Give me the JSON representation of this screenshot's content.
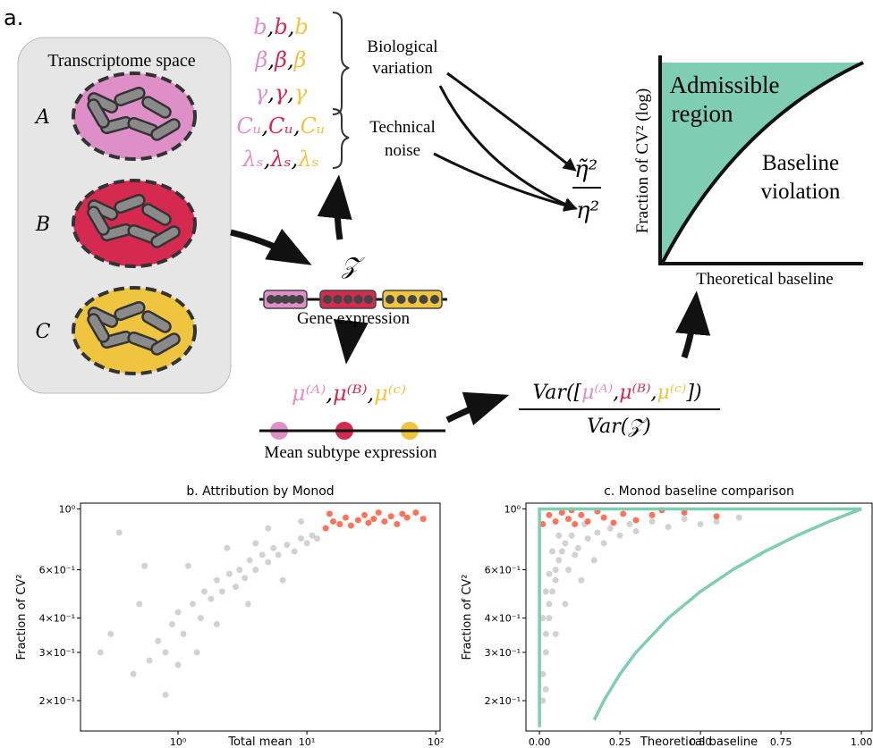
{
  "panel_label": "a.",
  "diagram": {
    "transcriptome_title": "Transcriptome space",
    "subtypes": [
      "A",
      "B",
      "C"
    ],
    "subtype_colors": [
      "#df8fc8",
      "#d5294f",
      "#efc53f"
    ],
    "parameters": [
      [
        "b",
        "b",
        "b"
      ],
      [
        "β",
        "β",
        "β"
      ],
      [
        "γ",
        "γ",
        "γ"
      ],
      [
        "Cᵤ",
        "Cᵤ",
        "Cᵤ"
      ],
      [
        "λₛ",
        "λₛ",
        "λₛ"
      ]
    ],
    "separator": ",",
    "bio_label": [
      "Biological",
      "variation"
    ],
    "tech_label": [
      "Technical",
      "noise"
    ],
    "ratio_numerator": "η̃²",
    "ratio_denominator": "η²",
    "z": "𝒵",
    "gene_expression": "Gene expression",
    "mean_labels": [
      "μ⁽ᴬ⁾",
      "μ⁽ᴮ⁾",
      "μ⁽ᶜ⁾"
    ],
    "mean_subtype_expression": "Mean subtype expression",
    "var_prefix": "Var([",
    "var_suffix": "])",
    "var_denominator": "Var(𝒵)",
    "schematic_y_label": "Fraction of CV² (log)",
    "schematic_x_label": "Theoretical baseline",
    "admissible": [
      "Admissible",
      "region"
    ],
    "violation": [
      "Baseline",
      "violation"
    ]
  },
  "chart_data": [
    {
      "type": "scatter",
      "title": "b. Attribution by Monod",
      "x_label": "Total mean",
      "y_label": "Fraction of CV²",
      "xlog": true,
      "ylog": true,
      "xlim": [
        0.175,
        108
      ],
      "ylim": [
        0.155,
        1.05
      ],
      "xticks": [
        {
          "value": 1,
          "label": "10⁰"
        },
        {
          "value": 10,
          "label": "10¹"
        },
        {
          "value": 100,
          "label": "10²"
        }
      ],
      "yticks": [
        {
          "value": 0.2,
          "label": "2×10⁻¹"
        },
        {
          "value": 0.3,
          "label": "3×10⁻¹"
        },
        {
          "value": 0.4,
          "label": "4×10⁻¹"
        },
        {
          "value": 0.6,
          "label": "6×10⁻¹"
        },
        {
          "value": 1,
          "label": "10⁰"
        }
      ],
      "series": [
        {
          "mode": "markers",
          "color": "#7f7f7f",
          "opacity": 0.35,
          "x": [
            0.3,
            0.35,
            0.5,
            0.6,
            0.7,
            0.8,
            0.9,
            1.0,
            1.1,
            1.3,
            1.5,
            1.6,
            1.8,
            2.0,
            2.2,
            2.5,
            2.8,
            3.0,
            3.3,
            3.6,
            4.0,
            4.5,
            5.0,
            5.5,
            6.0,
            7.0,
            8.0,
            9.0,
            10,
            11,
            12,
            1.2,
            2.4,
            0.55,
            0.45,
            1.4,
            3.5,
            6.5,
            0.8,
            0.25,
            5,
            9,
            2,
            1,
            4
          ],
          "values": [
            0.35,
            0.82,
            0.45,
            0.28,
            0.33,
            0.3,
            0.38,
            0.42,
            0.35,
            0.45,
            0.4,
            0.5,
            0.47,
            0.55,
            0.5,
            0.58,
            0.52,
            0.6,
            0.56,
            0.65,
            0.6,
            0.68,
            0.64,
            0.72,
            0.68,
            0.74,
            0.7,
            0.78,
            0.75,
            0.8,
            0.78,
            0.62,
            0.72,
            0.62,
            0.25,
            0.3,
            0.45,
            0.55,
            0.21,
            0.3,
            0.85,
            0.9,
            0.38,
            0.27,
            0.75
          ]
        },
        {
          "mode": "markers",
          "color": "#ff5a3c",
          "opacity": 0.85,
          "x": [
            14,
            16,
            18,
            20,
            22,
            25,
            28,
            30,
            33,
            36,
            40,
            45,
            50,
            55,
            60,
            70,
            80,
            15
          ],
          "values": [
            0.85,
            0.9,
            0.88,
            0.93,
            0.87,
            0.91,
            0.95,
            0.89,
            0.92,
            0.97,
            0.9,
            0.94,
            0.88,
            0.96,
            0.93,
            0.97,
            0.92,
            0.96
          ]
        }
      ]
    },
    {
      "type": "scatter",
      "title": "c. Monod baseline comparison",
      "x_label": "Theoretical baseline",
      "y_label": "Fraction of CV²",
      "xlog": false,
      "ylog": true,
      "xlim": [
        -0.042,
        1.033
      ],
      "ylim": [
        0.155,
        1.05
      ],
      "xticks": [
        {
          "value": 0,
          "label": "0.00"
        },
        {
          "value": 0.25,
          "label": "0.25"
        },
        {
          "value": 0.5,
          "label": "0.50"
        },
        {
          "value": 0.75,
          "label": "0.75"
        },
        {
          "value": 1,
          "label": "1.00"
        }
      ],
      "yticks": [
        {
          "value": 0.2,
          "label": "2×10⁻¹"
        },
        {
          "value": 0.3,
          "label": "3×10⁻¹"
        },
        {
          "value": 0.4,
          "label": "4×10⁻¹"
        },
        {
          "value": 0.6,
          "label": "6×10⁻¹"
        },
        {
          "value": 1,
          "label": "10⁰"
        }
      ],
      "series": [
        {
          "mode": "markers",
          "color": "#7f7f7f",
          "opacity": 0.35,
          "x": [
            0.01,
            0.01,
            0.02,
            0.02,
            0.03,
            0.03,
            0.04,
            0.05,
            0.05,
            0.06,
            0.07,
            0.08,
            0.1,
            0.12,
            0.15,
            0.18,
            0.2,
            0.22,
            0.25,
            0.28,
            0.3,
            0.35,
            0.4,
            0.02,
            0.04,
            0.06,
            0.09,
            0.11,
            0.01,
            0.03,
            0.14,
            0.45,
            0.5,
            0.55,
            0.62,
            0.08,
            0.05,
            0.02,
            0.13,
            0.17
          ],
          "values": [
            0.2,
            0.25,
            0.3,
            0.35,
            0.4,
            0.45,
            0.5,
            0.55,
            0.6,
            0.65,
            0.7,
            0.75,
            0.8,
            0.72,
            0.78,
            0.82,
            0.75,
            0.85,
            0.8,
            0.88,
            0.83,
            0.9,
            0.86,
            0.5,
            0.7,
            0.8,
            0.6,
            0.68,
            0.4,
            0.58,
            0.88,
            0.92,
            0.88,
            0.9,
            0.93,
            0.45,
            0.35,
            0.22,
            0.55,
            0.65
          ]
        },
        {
          "mode": "markers",
          "color": "#ff5a3c",
          "opacity": 0.85,
          "x": [
            0.01,
            0.03,
            0.05,
            0.07,
            0.09,
            0.11,
            0.13,
            0.15,
            0.18,
            0.2,
            0.23,
            0.26,
            0.3,
            0.35,
            0.38,
            0.45,
            0.55,
            0.1
          ],
          "values": [
            0.88,
            0.95,
            0.9,
            0.97,
            0.92,
            0.88,
            0.95,
            0.9,
            0.98,
            0.93,
            0.89,
            0.96,
            0.91,
            0.95,
            0.99,
            0.97,
            0.94,
            0.99
          ]
        },
        {
          "mode": "lines",
          "color": "#7fcdb3",
          "opacity": 1,
          "x": [
            0,
            0,
            1
          ],
          "values": [
            0.16,
            1,
            1
          ]
        },
        {
          "mode": "lines",
          "color": "#7fcdb3",
          "opacity": 1,
          "x": [
            0.17,
            0.2,
            0.25,
            0.3,
            0.4,
            0.5,
            0.6,
            0.7,
            0.8,
            0.9,
            1.0
          ],
          "values": [
            0.17,
            0.2,
            0.25,
            0.3,
            0.4,
            0.5,
            0.6,
            0.7,
            0.8,
            0.9,
            1.0
          ]
        }
      ]
    }
  ]
}
